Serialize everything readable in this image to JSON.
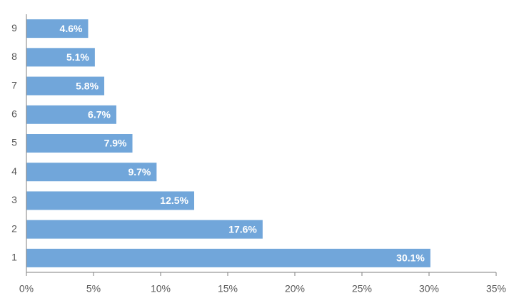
{
  "chart_data": {
    "type": "barh",
    "categories": [
      "1",
      "2",
      "3",
      "4",
      "5",
      "6",
      "7",
      "8",
      "9"
    ],
    "values": [
      30.1,
      17.6,
      12.5,
      9.7,
      7.9,
      6.7,
      5.8,
      5.1,
      4.6
    ],
    "value_labels": [
      "30.1%",
      "17.6%",
      "12.5%",
      "9.7%",
      "7.9%",
      "6.7%",
      "5.8%",
      "5.1%",
      "4.6%"
    ],
    "color": "#71a6da",
    "xlim": [
      0,
      35
    ],
    "xticks": [
      {
        "value": 0,
        "label": "0%"
      },
      {
        "value": 5,
        "label": "5%"
      },
      {
        "value": 10,
        "label": "10%"
      },
      {
        "value": 15,
        "label": "15%"
      },
      {
        "value": 20,
        "label": "20%"
      },
      {
        "value": 25,
        "label": "25%"
      },
      {
        "value": 30,
        "label": "30%"
      },
      {
        "value": 35,
        "label": "35%"
      }
    ],
    "grid": false
  }
}
